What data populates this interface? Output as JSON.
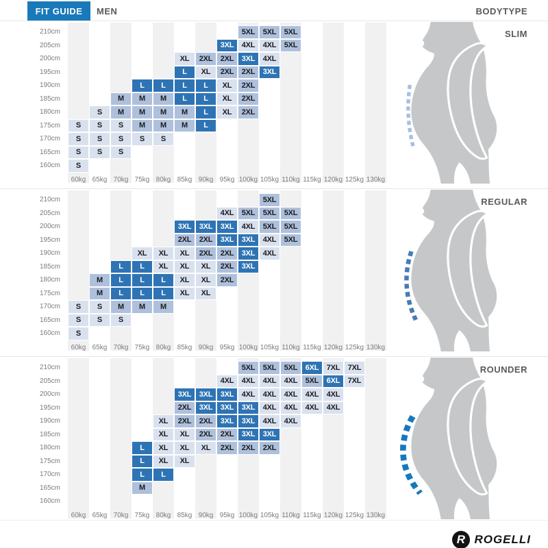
{
  "header": {
    "fit_guide": "FIT GUIDE",
    "gender": "MEN",
    "bodytype": "BODYTYPE"
  },
  "footer": {
    "brand": "ROGELLI",
    "logo_letter": "R"
  },
  "colors": {
    "accent_blue": "#1a79ba",
    "cell_dark": "#2e74b4",
    "cell_medium": "#aec0dc",
    "cell_light": "#d9e1ee",
    "stripe_gray": "#f1f1f2",
    "label_gray": "#7a7b7d",
    "bodytype_label_gray": "#58595b",
    "silhouette_gray": "#c5c7c9"
  },
  "size_shades": {
    "S": "light",
    "M": "medium",
    "L": "dark",
    "XL": "light",
    "2XL": "medium",
    "3XL": "dark",
    "4XL": "light",
    "5XL": "medium",
    "6XL": "dark",
    "7XL": "light"
  },
  "chart_data": {
    "type": "heatmap",
    "x_labels": [
      "60kg",
      "65kg",
      "70kg",
      "75kg",
      "80kg",
      "85kg",
      "90kg",
      "95kg",
      "100kg",
      "105kg",
      "110kg",
      "115kg",
      "120kg",
      "125kg",
      "130kg"
    ],
    "y_labels": [
      "210cm",
      "205cm",
      "200cm",
      "195cm",
      "190cm",
      "185cm",
      "180cm",
      "175cm",
      "170cm",
      "165cm",
      "160cm"
    ],
    "size_order": [
      "S",
      "M",
      "L",
      "XL",
      "2XL",
      "3XL",
      "4XL",
      "5XL",
      "6XL",
      "7XL"
    ],
    "panels": [
      {
        "title": "SLIM",
        "belly_line": {
          "color": "#a8c0de",
          "thickness": 5,
          "dash_pattern": "6 4.5",
          "curve": "slight"
        },
        "cells": {
          "210": {
            "100": "5XL",
            "105": "5XL",
            "110": "5XL"
          },
          "205": {
            "95": "3XL",
            "100": "4XL",
            "105": "4XL",
            "110": "5XL"
          },
          "200": {
            "85": "XL",
            "90": "2XL",
            "95": "2XL",
            "100": "3XL",
            "105": "4XL"
          },
          "195": {
            "85": "L",
            "90": "XL",
            "95": "2XL",
            "100": "2XL",
            "105": "3XL"
          },
          "190": {
            "75": "L",
            "80": "L",
            "85": "L",
            "90": "L",
            "95": "XL",
            "100": "2XL"
          },
          "185": {
            "70": "M",
            "75": "M",
            "80": "M",
            "85": "L",
            "90": "L",
            "95": "XL",
            "100": "2XL"
          },
          "180": {
            "65": "S",
            "70": "M",
            "75": "M",
            "80": "M",
            "85": "M",
            "90": "L",
            "95": "XL",
            "100": "2XL"
          },
          "175": {
            "60": "S",
            "65": "S",
            "70": "S",
            "75": "M",
            "80": "M",
            "85": "M",
            "90": "L"
          },
          "170": {
            "60": "S",
            "65": "S",
            "70": "S",
            "75": "S",
            "80": "S"
          },
          "165": {
            "60": "S",
            "65": "S",
            "70": "S"
          },
          "160": {
            "60": "S"
          }
        }
      },
      {
        "title": "REGULAR",
        "belly_line": {
          "color": "#467cb7",
          "thickness": 6,
          "dash_pattern": "7 5",
          "curve": "medium"
        },
        "cells": {
          "210": {
            "105": "5XL"
          },
          "205": {
            "95": "4XL",
            "100": "5XL",
            "105": "5XL",
            "110": "5XL"
          },
          "200": {
            "85": "3XL",
            "90": "3XL",
            "95": "3XL",
            "100": "4XL",
            "105": "5XL",
            "110": "5XL"
          },
          "195": {
            "85": "2XL",
            "90": "2XL",
            "95": "3XL",
            "100": "3XL",
            "105": "4XL",
            "110": "5XL"
          },
          "190": {
            "75": "XL",
            "80": "XL",
            "85": "XL",
            "90": "2XL",
            "95": "2XL",
            "100": "3XL",
            "105": "4XL"
          },
          "185": {
            "70": "L",
            "75": "L",
            "80": "XL",
            "85": "XL",
            "90": "XL",
            "95": "2XL",
            "100": "3XL"
          },
          "180": {
            "65": "M",
            "70": "L",
            "75": "L",
            "80": "L",
            "85": "XL",
            "90": "XL",
            "95": "2XL"
          },
          "175": {
            "65": "M",
            "70": "L",
            "75": "L",
            "80": "L",
            "85": "XL",
            "90": "XL"
          },
          "170": {
            "60": "S",
            "65": "S",
            "70": "M",
            "75": "M",
            "80": "M"
          },
          "165": {
            "60": "S",
            "65": "S",
            "70": "S"
          },
          "160": {
            "60": "S"
          }
        }
      },
      {
        "title": "ROUNDER",
        "belly_line": {
          "color": "#1878bc",
          "thickness": 8,
          "dash_pattern": "8.5 6",
          "curve": "strong"
        },
        "cells": {
          "210": {
            "100": "5XL",
            "105": "5XL",
            "110": "5XL",
            "115": "6XL",
            "120": "7XL",
            "125": "7XL"
          },
          "205": {
            "95": "4XL",
            "100": "4XL",
            "105": "4XL",
            "110": "4XL",
            "115": "5XL",
            "120": "6XL",
            "125": "7XL"
          },
          "200": {
            "85": "3XL",
            "90": "3XL",
            "95": "3XL",
            "100": "4XL",
            "105": "4XL",
            "110": "4XL",
            "115": "4XL",
            "120": "4XL"
          },
          "195": {
            "85": "2XL",
            "90": "3XL",
            "95": "3XL",
            "100": "3XL",
            "105": "4XL",
            "110": "4XL",
            "115": "4XL",
            "120": "4XL"
          },
          "190": {
            "80": "XL",
            "85": "2XL",
            "90": "2XL",
            "95": "3XL",
            "100": "3XL",
            "105": "4XL",
            "110": "4XL"
          },
          "185": {
            "80": "XL",
            "85": "XL",
            "90": "2XL",
            "95": "2XL",
            "100": "3XL",
            "105": "3XL"
          },
          "180": {
            "75": "L",
            "80": "XL",
            "85": "XL",
            "90": "XL",
            "95": "2XL",
            "100": "2XL",
            "105": "2XL"
          },
          "175": {
            "75": "L",
            "80": "XL",
            "85": "XL"
          },
          "170": {
            "75": "L",
            "80": "L"
          },
          "165": {
            "75": "M"
          },
          "160": {}
        }
      }
    ]
  }
}
